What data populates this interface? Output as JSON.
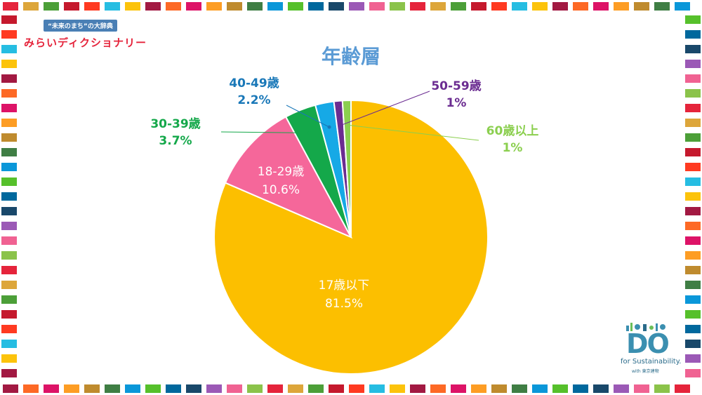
{
  "branding": {
    "tagline": "“未来のまち”の大辞典",
    "name": "みらいディクショナリー",
    "partner_mark": "DO",
    "partner_sub": "for Sustainability.",
    "partner_with": "with 東京建物"
  },
  "colors": {
    "border_palette": [
      "#e5243b",
      "#dda63a",
      "#4c9f38",
      "#c5192d",
      "#ff3a21",
      "#26bde2",
      "#fcc30b",
      "#a21942",
      "#fd6925",
      "#dd1367",
      "#fd9d24",
      "#bf8b2e",
      "#3f7e44",
      "#0a97d9",
      "#56c02b",
      "#00689d",
      "#19486a",
      "#9b59b6",
      "#f06292",
      "#8bc34a"
    ]
  },
  "chart_data": {
    "type": "pie",
    "title": "年齢層",
    "slices": [
      {
        "name": "17歳以下",
        "value": 81.5,
        "value_label": "81.5%",
        "color": "#fcbf00"
      },
      {
        "name": "18-29歳",
        "value": 10.6,
        "value_label": "10.6%",
        "color": "#f5679a"
      },
      {
        "name": "30-39歳",
        "value": 3.7,
        "value_label": "3.7%",
        "color": "#14a84a"
      },
      {
        "name": "40-49歳",
        "value": 2.2,
        "value_label": "2.2%",
        "color": "#16a9e6"
      },
      {
        "name": "50-59歳",
        "value": 1,
        "value_label": "1%",
        "color": "#6b2c91"
      },
      {
        "name": "60歳以上",
        "value": 1,
        "value_label": "1%",
        "color": "#8bcf4f"
      }
    ],
    "label_colors": {
      "30-39歳": "#14a84a",
      "40-49歳": "#1a78b8",
      "50-59歳": "#6b2c91",
      "60歳以上": "#8bcf4f"
    },
    "legend": "none"
  }
}
